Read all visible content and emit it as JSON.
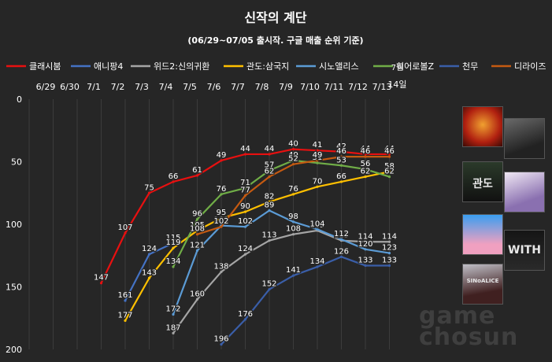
{
  "chart_data": {
    "type": "line",
    "title": "신작의 계단",
    "subtitle": "(06/29~07/05 출시작. 구글 매출 순위 기준)",
    "xlabel": "",
    "ylabel": "",
    "categories": [
      "6/29",
      "6/30",
      "7/1",
      "7/2",
      "7/3",
      "7/4",
      "7/5",
      "7/6",
      "7/7",
      "7/8",
      "7/9",
      "7/10",
      "7/11",
      "7/12",
      "7/13",
      "7월 14일"
    ],
    "ylim": [
      0,
      200
    ],
    "y_inverted": true,
    "yticks": [
      "0",
      "50",
      "100",
      "150",
      "200"
    ],
    "grid": true,
    "legend_position": "top",
    "series": [
      {
        "name": "클래시붐",
        "color": "#e81010",
        "values": [
          null,
          null,
          null,
          147,
          107,
          75,
          66,
          61,
          49,
          44,
          44,
          40,
          41,
          42,
          44,
          44
        ]
      },
      {
        "name": "애니팡4",
        "color": "#4472c4",
        "values": [
          null,
          null,
          null,
          null,
          161,
          124,
          115,
          null,
          null,
          null,
          null,
          null,
          null,
          null,
          null,
          null
        ]
      },
      {
        "name": "위드2:신의귀환",
        "color": "#a5a5a5",
        "values": [
          null,
          null,
          null,
          null,
          null,
          null,
          187,
          160,
          138,
          124,
          113,
          108,
          105,
          113,
          114,
          114
        ]
      },
      {
        "name": "관도:삼국지",
        "color": "#ffc000",
        "values": [
          null,
          null,
          null,
          null,
          177,
          143,
          119,
          105,
          95,
          90,
          82,
          76,
          70,
          66,
          62,
          58
        ]
      },
      {
        "name": "시노앨리스",
        "color": "#5b9bd5",
        "values": [
          null,
          null,
          null,
          null,
          null,
          null,
          172,
          121,
          101,
          102,
          89,
          98,
          104,
          112,
          120,
          123
        ]
      },
      {
        "name": "히어로볼Z",
        "color": "#70ad47",
        "values": [
          null,
          null,
          null,
          null,
          null,
          null,
          134,
          96,
          76,
          71,
          57,
          49,
          51,
          53,
          56,
          62
        ]
      },
      {
        "name": "천무",
        "color": "#3a5ea8",
        "values": [
          null,
          null,
          null,
          null,
          null,
          null,
          null,
          null,
          196,
          176,
          152,
          141,
          134,
          126,
          133,
          133
        ]
      },
      {
        "name": "디라이즈",
        "color": "#c55a11",
        "values": [
          null,
          null,
          null,
          null,
          null,
          null,
          null,
          108,
          102,
          77,
          62,
          52,
          49,
          46,
          46,
          46
        ]
      }
    ]
  },
  "thumbnails": [
    {
      "name": "thumb-clashboom",
      "label": ""
    },
    {
      "name": "thumb-dark-warrior",
      "label": ""
    },
    {
      "name": "thumb-gwando",
      "label": "관도"
    },
    {
      "name": "thumb-anime-girl",
      "label": ""
    },
    {
      "name": "thumb-anipang",
      "label": ""
    },
    {
      "name": "thumb-with2",
      "label": "WITH"
    },
    {
      "name": "thumb-sinoalice",
      "label": "SINoALICE"
    }
  ],
  "watermark": {
    "line1": "game",
    "line2": "chosun"
  }
}
